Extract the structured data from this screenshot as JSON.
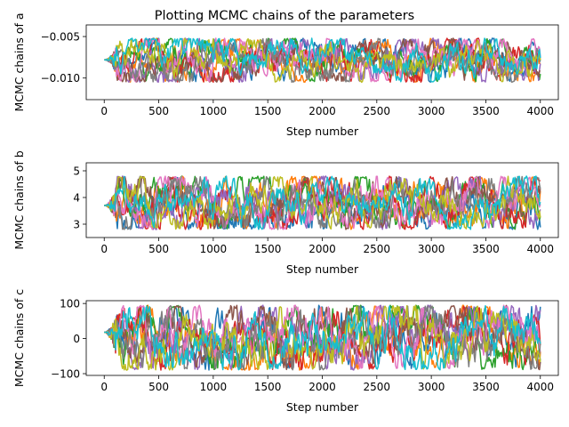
{
  "figure": {
    "title": "Plotting MCMC chains of the parameters"
  },
  "palette": [
    "#1f77b4",
    "#ff7f0e",
    "#2ca02c",
    "#d62728",
    "#9467bd",
    "#8c564b",
    "#e377c2",
    "#7f7f7f",
    "#bcbd22",
    "#17becf"
  ],
  "chart_data": [
    {
      "type": "line",
      "title": "Plotting MCMC chains of the parameters",
      "xlabel": "Step number",
      "ylabel": "MCMC chains of a",
      "xlim": [
        -165,
        4165
      ],
      "ylim": [
        -0.0126,
        -0.0036
      ],
      "xticks": [
        0,
        500,
        1000,
        1500,
        2000,
        2500,
        3000,
        3500,
        4000
      ],
      "xtick_labels": [
        "0",
        "500",
        "1000",
        "1500",
        "2000",
        "2500",
        "3000",
        "3500",
        "4000"
      ],
      "yticks": [
        -0.005,
        -0.01
      ],
      "ytick_labels": [
        "−0.005",
        "−0.010"
      ],
      "grid": false,
      "n_walkers": 10,
      "n_steps": 4000,
      "init_value": -0.0078,
      "burn_in_steps": 120,
      "band": [
        -0.0105,
        -0.0052
      ]
    },
    {
      "type": "line",
      "xlabel": "Step number",
      "ylabel": "MCMC chains of b",
      "xlim": [
        -165,
        4165
      ],
      "ylim": [
        2.5,
        5.3
      ],
      "xticks": [
        0,
        500,
        1000,
        1500,
        2000,
        2500,
        3000,
        3500,
        4000
      ],
      "xtick_labels": [
        "0",
        "500",
        "1000",
        "1500",
        "2000",
        "2500",
        "3000",
        "3500",
        "4000"
      ],
      "yticks": [
        3,
        4,
        5
      ],
      "ytick_labels": [
        "3",
        "4",
        "5"
      ],
      "grid": false,
      "n_walkers": 10,
      "n_steps": 4000,
      "init_value": 3.7,
      "burn_in_steps": 120,
      "band": [
        2.8,
        4.8
      ]
    },
    {
      "type": "line",
      "xlabel": "Step number",
      "ylabel": "MCMC chains of c",
      "xlim": [
        -165,
        4165
      ],
      "ylim": [
        -105,
        108
      ],
      "xticks": [
        0,
        500,
        1000,
        1500,
        2000,
        2500,
        3000,
        3500,
        4000
      ],
      "xtick_labels": [
        "0",
        "500",
        "1000",
        "1500",
        "2000",
        "2500",
        "3000",
        "3500",
        "4000"
      ],
      "yticks": [
        -100,
        0,
        100
      ],
      "ytick_labels": [
        "−100",
        "0",
        "100"
      ],
      "grid": false,
      "n_walkers": 10,
      "n_steps": 4000,
      "init_value": 18,
      "burn_in_steps": 120,
      "band": [
        -90,
        95
      ]
    }
  ]
}
